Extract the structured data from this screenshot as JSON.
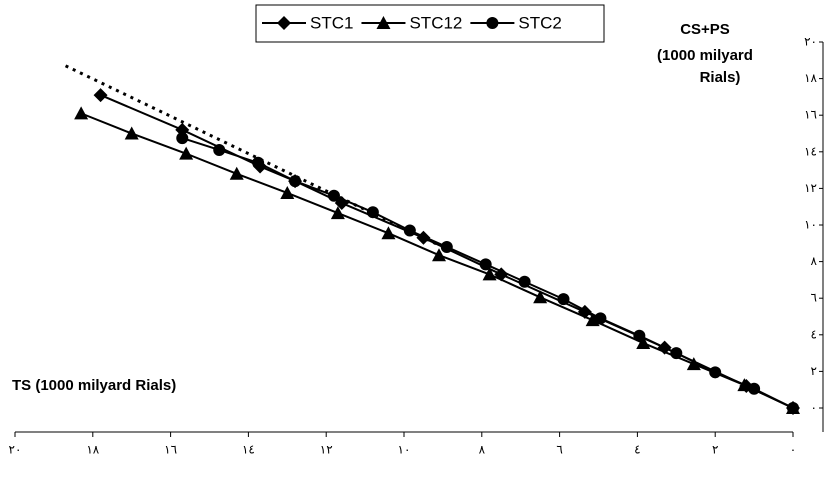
{
  "chart_data": {
    "type": "line",
    "x_label": "TS (1000 milyard Rials)",
    "y_label": [
      "CS+PS",
      "(1000 milyard",
      "Rials)"
    ],
    "xlim": [
      20,
      0
    ],
    "ylim": [
      0,
      20
    ],
    "xticks": [
      {
        "value": 20,
        "label": "٢٠"
      },
      {
        "value": 18,
        "label": "١٨"
      },
      {
        "value": 16,
        "label": "١٦"
      },
      {
        "value": 14,
        "label": "١٤"
      },
      {
        "value": 12,
        "label": "١٢"
      },
      {
        "value": 10,
        "label": "١٠"
      },
      {
        "value": 8,
        "label": "٨"
      },
      {
        "value": 6,
        "label": "٦"
      },
      {
        "value": 4,
        "label": "٤"
      },
      {
        "value": 2,
        "label": "٢"
      },
      {
        "value": 0,
        "label": "٠"
      }
    ],
    "yticks": [
      {
        "value": 0,
        "label": "٠"
      },
      {
        "value": 2,
        "label": "٢"
      },
      {
        "value": 4,
        "label": "٤"
      },
      {
        "value": 6,
        "label": "٦"
      },
      {
        "value": 8,
        "label": "٨"
      },
      {
        "value": 10,
        "label": "١٠"
      },
      {
        "value": 12,
        "label": "١٢"
      },
      {
        "value": 14,
        "label": "١٤"
      },
      {
        "value": 16,
        "label": "١٦"
      },
      {
        "value": 18,
        "label": "١٨"
      },
      {
        "value": 20,
        "label": "٢٠"
      }
    ],
    "grid": false,
    "legend": "top",
    "series": [
      {
        "name": "STC1",
        "color": "#000000",
        "marker": "diamond",
        "x": [
          17.8,
          15.7,
          13.7,
          12.8,
          11.6,
          9.5,
          7.5,
          5.35,
          3.3,
          1.2,
          0
        ],
        "values": [
          17.1,
          15.2,
          13.2,
          12.4,
          11.2,
          9.3,
          7.3,
          5.25,
          3.3,
          1.2,
          0
        ]
      },
      {
        "name": "STC12",
        "color": "#000000",
        "marker": "triangle",
        "x": [
          18.3,
          17.0,
          15.6,
          14.3,
          13.0,
          11.7,
          10.4,
          9.1,
          7.8,
          6.5,
          5.15,
          3.85,
          2.55,
          1.25,
          0
        ],
        "values": [
          16.1,
          15.0,
          13.9,
          12.8,
          11.75,
          10.65,
          9.55,
          8.35,
          7.3,
          6.05,
          4.8,
          3.55,
          2.4,
          1.25,
          0
        ]
      },
      {
        "name": "STC2",
        "color": "#000000",
        "marker": "circle",
        "x": [
          15.7,
          14.75,
          13.75,
          12.8,
          11.8,
          10.8,
          9.85,
          8.9,
          7.9,
          6.9,
          5.9,
          4.95,
          3.95,
          3.0,
          2.0,
          1.0,
          0
        ],
        "values": [
          14.75,
          14.1,
          13.4,
          12.4,
          11.6,
          10.7,
          9.7,
          8.8,
          7.85,
          6.9,
          5.95,
          4.9,
          3.95,
          3.0,
          1.95,
          1.05,
          0
        ]
      },
      {
        "color": "#000000",
        "marker": "none",
        "style": "dotted",
        "x": [
          18.7,
          9.1
        ],
        "values": [
          18.7,
          8.9
        ]
      }
    ]
  }
}
